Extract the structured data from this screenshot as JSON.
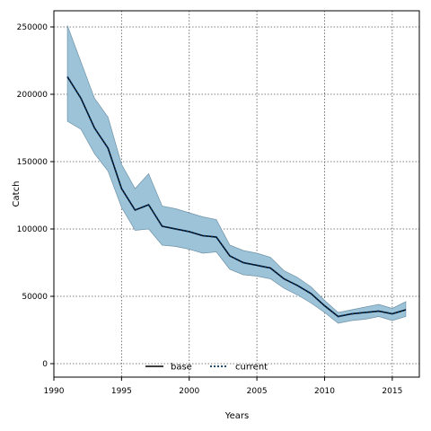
{
  "chart_data": {
    "type": "line",
    "title": "",
    "xlabel": "Years",
    "ylabel": "Catch",
    "xlim": [
      1990,
      2017
    ],
    "ylim": [
      -10000,
      262000
    ],
    "xticks": [
      1990,
      1995,
      2000,
      2005,
      2010,
      2015
    ],
    "yticks": [
      0,
      50000,
      100000,
      150000,
      200000,
      250000
    ],
    "grid": true,
    "legend_position": "bottom-center",
    "x": [
      1991,
      1992,
      1993,
      1994,
      1995,
      1996,
      1997,
      1998,
      1999,
      2000,
      2001,
      2002,
      2003,
      2004,
      2005,
      2006,
      2007,
      2008,
      2009,
      2010,
      2011,
      2012,
      2013,
      2014,
      2015,
      2016
    ],
    "series": [
      {
        "name": "base",
        "style": "solid",
        "color": "#000000",
        "values": [
          213000,
          197000,
          175000,
          160000,
          130000,
          114000,
          118000,
          102000,
          100000,
          98000,
          95000,
          94000,
          80000,
          75000,
          73000,
          71000,
          63000,
          58000,
          52000,
          43000,
          35000,
          37000,
          38000,
          39000,
          37000,
          40000
        ],
        "band_upper": [
          251000,
          224000,
          197000,
          183000,
          148000,
          130000,
          141000,
          117000,
          115000,
          112000,
          109000,
          107000,
          88000,
          84000,
          82000,
          79000,
          69000,
          64000,
          57000,
          47000,
          38000,
          40000,
          42000,
          44000,
          41000,
          46000
        ],
        "band_lower": [
          180000,
          174000,
          156000,
          143000,
          116000,
          99000,
          100000,
          88000,
          87000,
          85000,
          82000,
          83000,
          70000,
          66000,
          65000,
          63000,
          56000,
          51000,
          45000,
          38000,
          30000,
          32000,
          33000,
          35000,
          32000,
          35000
        ],
        "band_color": "#9dc3d9"
      },
      {
        "name": "current",
        "style": "dotted",
        "color": "#003366",
        "values": [
          213000,
          197000,
          175000,
          160000,
          130000,
          114000,
          118000,
          102000,
          100000,
          98000,
          95000,
          94000,
          80000,
          75000,
          73000,
          71000,
          63000,
          58000,
          52000,
          43000,
          35000,
          37000,
          38000,
          39000,
          37000,
          40000
        ]
      }
    ]
  }
}
